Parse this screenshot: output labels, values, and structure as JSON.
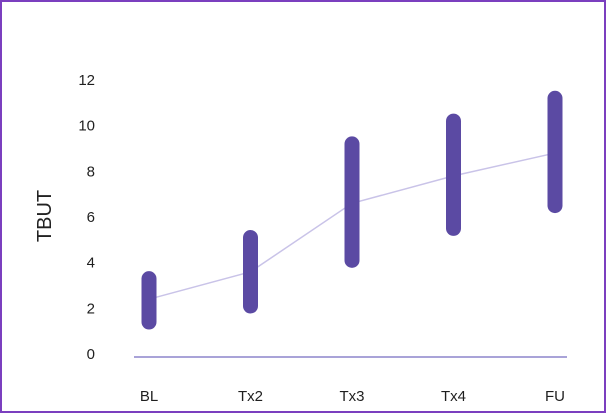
{
  "chart_data": {
    "type": "line",
    "ylabel": "TBUT",
    "xlabel": "",
    "categories": [
      "BL",
      "Tx2",
      "Tx3",
      "Tx4",
      "FU"
    ],
    "ylim": [
      0,
      12
    ],
    "yticks": [
      "0",
      "2",
      "4",
      "6",
      "8",
      "10",
      "12"
    ],
    "mean": [
      2.4,
      3.6,
      6.6,
      7.8,
      8.8
    ],
    "range_low": [
      1.4,
      2.1,
      4.1,
      5.5,
      6.5
    ],
    "range_high": [
      3.3,
      5.1,
      9.2,
      10.2,
      11.2
    ],
    "grid": false,
    "colors": {
      "range_bar": "#5b4aa3",
      "mean_line": "#c9c3e8",
      "baseline": "#a9a3d8",
      "frame": "#7b3fbf"
    }
  }
}
